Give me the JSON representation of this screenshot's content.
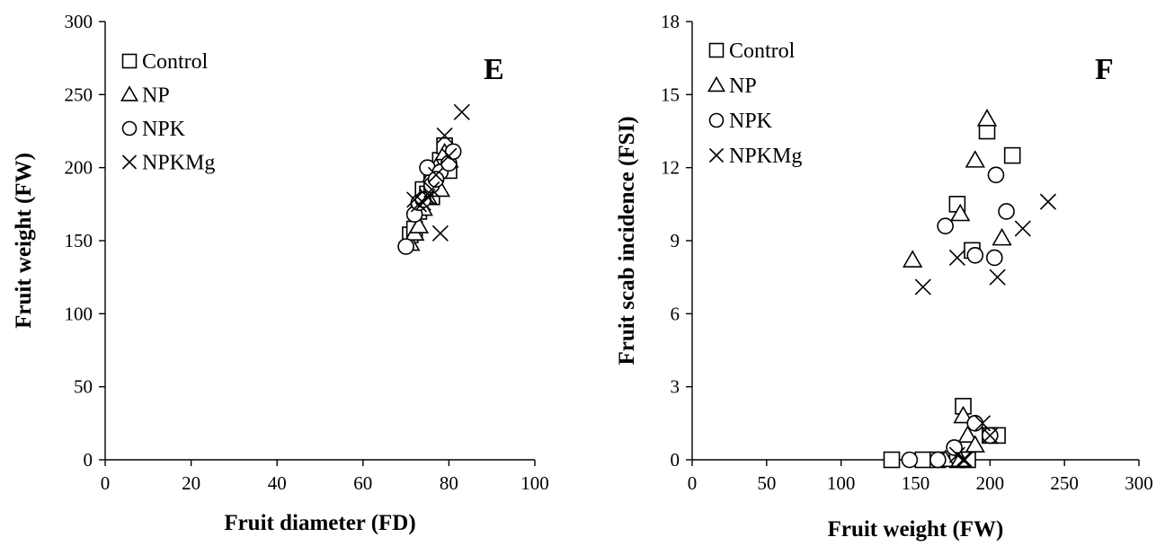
{
  "chart_data": [
    {
      "type": "scatter",
      "panel_label": "E",
      "title": "",
      "xlabel": "Fruit diameter (FD)",
      "ylabel": "Fruit weight (FW)",
      "xlim": [
        0,
        100
      ],
      "ylim": [
        0,
        300
      ],
      "x_ticks": [
        0,
        20,
        40,
        60,
        80,
        100
      ],
      "y_ticks": [
        0,
        50,
        100,
        150,
        200,
        250,
        300
      ],
      "grid": false,
      "legend_position": "top-left",
      "series": [
        {
          "name": "Control",
          "marker": "square",
          "points": [
            [
              71,
              154
            ],
            [
              72,
              158
            ],
            [
              74,
              185
            ],
            [
              75,
              182
            ],
            [
              76,
              190
            ],
            [
              77,
              198
            ],
            [
              78,
              205
            ],
            [
              79,
              215
            ],
            [
              80,
              198
            ],
            [
              76,
              180
            ],
            [
              73,
              170
            ]
          ]
        },
        {
          "name": "NP",
          "marker": "triangle",
          "points": [
            [
              71,
              148
            ],
            [
              72,
              155
            ],
            [
              74,
              172
            ],
            [
              75,
              180
            ],
            [
              76,
              195
            ],
            [
              77,
              200
            ],
            [
              78,
              185
            ],
            [
              79,
              210
            ],
            [
              80,
              205
            ],
            [
              73,
              160
            ]
          ]
        },
        {
          "name": "NPK",
          "marker": "circle",
          "points": [
            [
              70,
              146
            ],
            [
              72,
              168
            ],
            [
              73,
              176
            ],
            [
              75,
              200
            ],
            [
              76,
              188
            ],
            [
              78,
              197
            ],
            [
              80,
              203
            ],
            [
              81,
              211
            ],
            [
              74,
              178
            ],
            [
              77,
              192
            ]
          ]
        },
        {
          "name": "NPKMg",
          "marker": "cross",
          "points": [
            [
              72,
              178
            ],
            [
              74,
              176
            ],
            [
              75,
              180
            ],
            [
              76,
              185
            ],
            [
              77,
              195
            ],
            [
              78,
              155
            ],
            [
              79,
              222
            ],
            [
              80,
              208
            ],
            [
              83,
              238
            ],
            [
              73,
              175
            ]
          ]
        }
      ]
    },
    {
      "type": "scatter",
      "panel_label": "F",
      "title": "",
      "xlabel": "Fruit weight (FW)",
      "ylabel": "Fruit scab incidence (FSI)",
      "xlim": [
        0,
        300
      ],
      "ylim": [
        0,
        18
      ],
      "x_ticks": [
        0,
        50,
        100,
        150,
        200,
        250,
        300
      ],
      "y_ticks": [
        0,
        3,
        6,
        9,
        12,
        15,
        18
      ],
      "grid": false,
      "legend_position": "top-left",
      "series": [
        {
          "name": "Control",
          "marker": "square",
          "points": [
            [
              134,
              0
            ],
            [
              155,
              0
            ],
            [
              165,
              0
            ],
            [
              178,
              0
            ],
            [
              185,
              0
            ],
            [
              182,
              2.2
            ],
            [
              200,
              1
            ],
            [
              205,
              1
            ],
            [
              178,
              10.5
            ],
            [
              188,
              8.6
            ],
            [
              198,
              13.5
            ],
            [
              215,
              12.5
            ]
          ]
        },
        {
          "name": "NP",
          "marker": "triangle",
          "points": [
            [
              148,
              8.2
            ],
            [
              180,
              10.1
            ],
            [
              190,
              12.3
            ],
            [
              198,
              14
            ],
            [
              208,
              9.1
            ],
            [
              182,
              1.8
            ],
            [
              185,
              1.0
            ],
            [
              190,
              0.6
            ],
            [
              170,
              0
            ],
            [
              180,
              0
            ]
          ]
        },
        {
          "name": "NPK",
          "marker": "circle",
          "points": [
            [
              170,
              9.6
            ],
            [
              190,
              8.4
            ],
            [
              203,
              8.3
            ],
            [
              204,
              11.7
            ],
            [
              211,
              10.2
            ],
            [
              146,
              0
            ],
            [
              165,
              0
            ],
            [
              176,
              0.5
            ],
            [
              190,
              1.5
            ],
            [
              200,
              1.0
            ]
          ]
        },
        {
          "name": "NPKMg",
          "marker": "cross",
          "points": [
            [
              155,
              7.1
            ],
            [
              178,
              8.3
            ],
            [
              205,
              7.5
            ],
            [
              222,
              9.5
            ],
            [
              239,
              10.6
            ],
            [
              183,
              0
            ],
            [
              195,
              1.5
            ],
            [
              178,
              0.2
            ],
            [
              200,
              1.0
            ],
            [
              182,
              0
            ]
          ]
        }
      ]
    }
  ]
}
